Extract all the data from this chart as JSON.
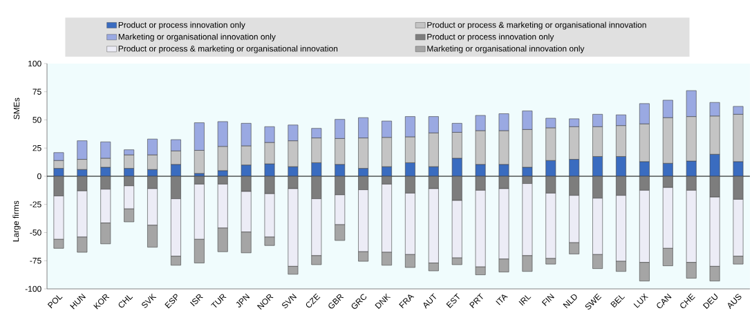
{
  "chart_data": {
    "type": "bar",
    "stacked": true,
    "annotations": [
      "SMEs",
      "Large firms"
    ],
    "categories": [
      "POL",
      "HUN",
      "KOR",
      "CHL",
      "SVK",
      "ESP",
      "ISR",
      "TUR",
      "JPN",
      "NOR",
      "SVN",
      "CZE",
      "GBR",
      "GRC",
      "DNK",
      "FRA",
      "AUT",
      "EST",
      "PRT",
      "ITA",
      "IRL",
      "FIN",
      "NLD",
      "SWE",
      "BEL",
      "LUX",
      "CAN",
      "CHE",
      "DEU",
      "AUS"
    ],
    "series": [
      {
        "name": "Product or process innovation only",
        "color": "#3a6cc0",
        "values": [
          7,
          6,
          8,
          7,
          6,
          10.5,
          2.5,
          5,
          10,
          11,
          8.5,
          12,
          10.5,
          7,
          8.5,
          12,
          8.5,
          16,
          10.5,
          10.5,
          8,
          14,
          15,
          17.5,
          17.5,
          13,
          11.5,
          13.5,
          19.5,
          13
        ]
      },
      {
        "name": "Product or process & marketing or organisational innovation",
        "color": "#c4c4c4",
        "values": [
          7,
          9,
          8,
          12,
          13,
          12,
          20.5,
          21.5,
          17,
          19,
          23,
          22,
          23,
          27,
          26,
          23,
          30,
          23,
          30,
          30,
          33.5,
          29,
          29,
          26.5,
          27.5,
          33.5,
          40.5,
          39.5,
          34,
          42
        ]
      },
      {
        "name": "Marketing or organisational innovation only",
        "color": "#9aa9e2",
        "values": [
          7,
          16.5,
          14.5,
          4.5,
          14,
          10,
          24.5,
          22,
          20,
          14,
          14,
          8.5,
          17,
          18,
          14.5,
          18,
          14.5,
          8,
          13.5,
          15,
          16.5,
          8.5,
          7,
          11,
          9.5,
          18,
          15.5,
          23,
          12,
          7
        ]
      },
      {
        "name": "Product or process innovation only",
        "color": "#7d7d7d",
        "values": [
          -17.5,
          -13,
          -11.5,
          -8.5,
          -11,
          -20,
          -7,
          -7,
          -13.5,
          -15.5,
          -11,
          -20,
          -16.5,
          -12,
          -7,
          -15,
          -11,
          -21.5,
          -12.5,
          -11,
          -6.5,
          -15,
          -17,
          -19.5,
          -17,
          -12.5,
          -10,
          -12.5,
          -18.5,
          -20.5
        ]
      },
      {
        "name": "Product or process & marketing or organisational innovation",
        "color": "#ececf6",
        "values": [
          -38.5,
          -41,
          -30,
          -20.5,
          -32.5,
          -51,
          -49,
          -39,
          -36,
          -38.5,
          -69,
          -50.5,
          -26.5,
          -55,
          -60.5,
          -54.5,
          -66,
          -51,
          -68,
          -62.5,
          -64,
          -58,
          -42,
          -50,
          -58.5,
          -64,
          -54,
          -64,
          -61.5,
          -50.5
        ]
      },
      {
        "name": "Marketing or organisational innovation only",
        "color": "#a5a5a5",
        "values": [
          -8,
          -13.5,
          -18.5,
          -11.5,
          -19.5,
          -8,
          -21,
          -21,
          -18.5,
          -7.5,
          -7,
          -8,
          -14,
          -8.5,
          -11.5,
          -11.5,
          -7,
          -6,
          -7,
          -11.5,
          -14,
          -5,
          -10,
          -12.5,
          -9,
          -16.5,
          -15.5,
          -14,
          -13,
          -7
        ]
      }
    ],
    "ylim": [
      -100,
      100
    ],
    "yticks": [
      -100,
      -75,
      -50,
      -25,
      0,
      25,
      50,
      75,
      100
    ],
    "ref_lines": [
      {
        "axis": "y",
        "value": 0
      }
    ],
    "legend": "top"
  }
}
